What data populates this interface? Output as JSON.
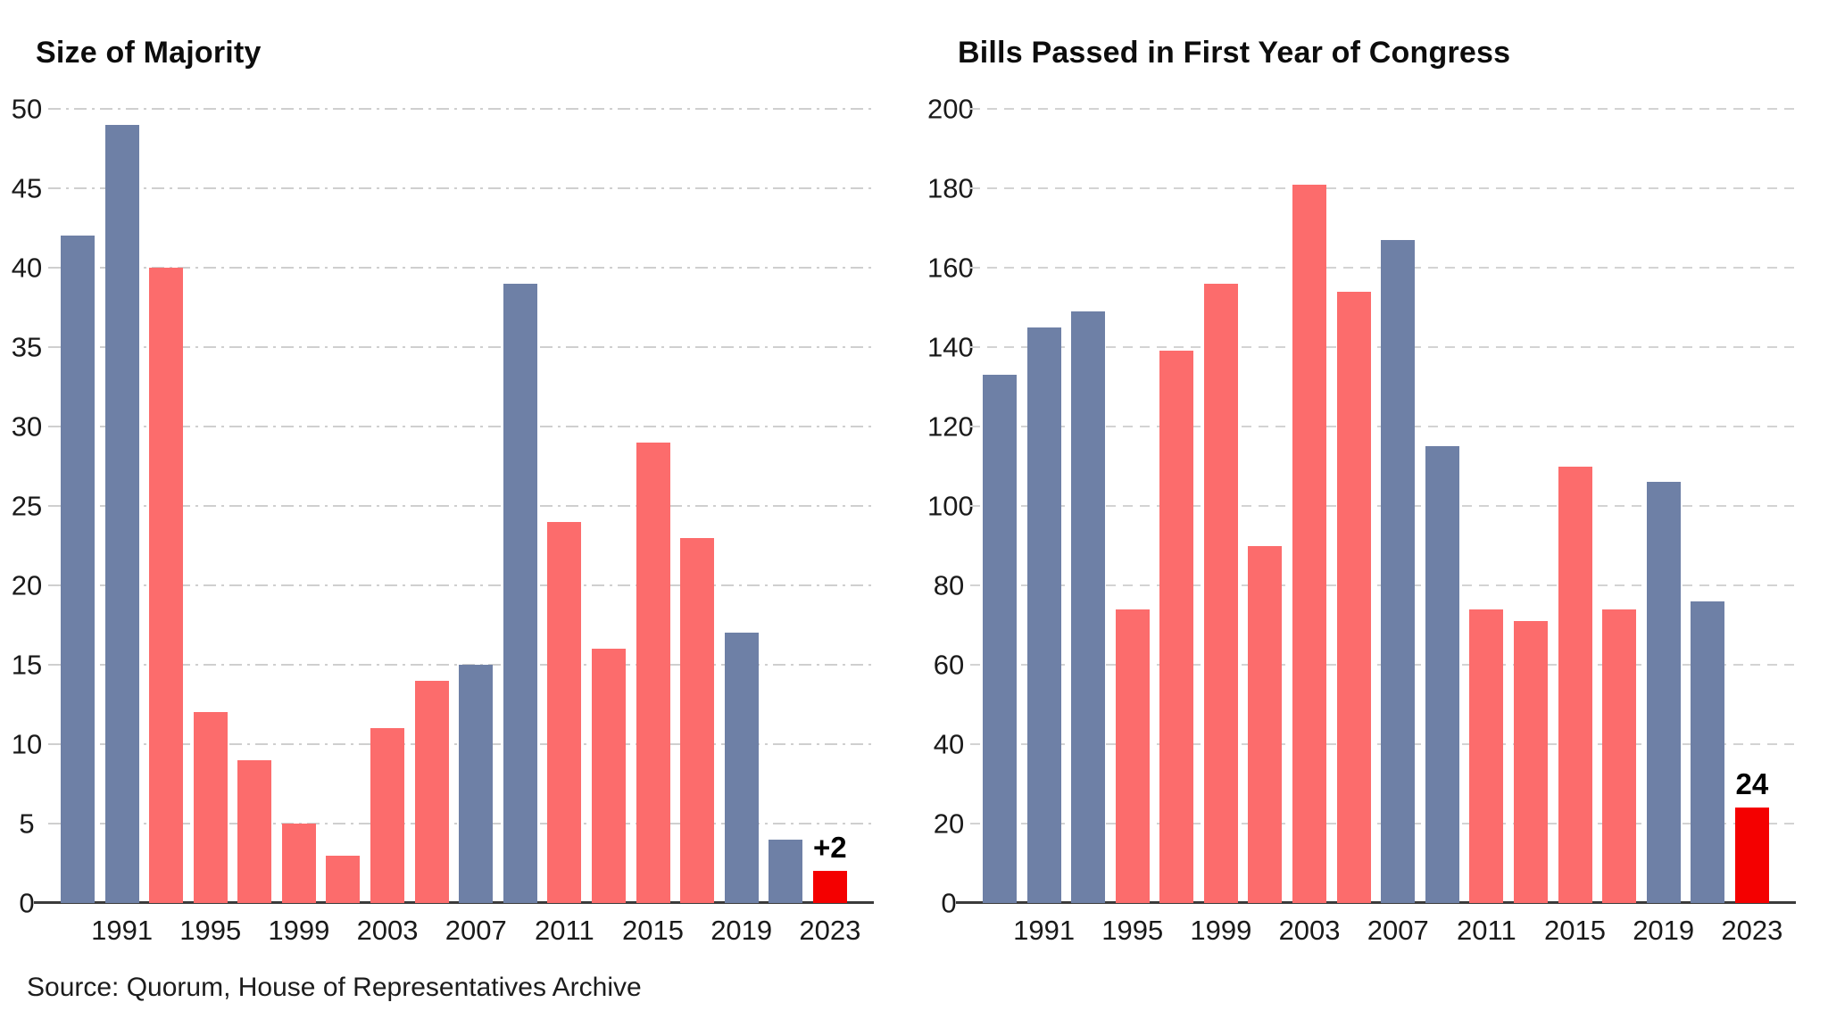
{
  "source_note": "Source: Quorum, House of Representatives Archive",
  "palette": {
    "blue": "#6E80A6",
    "red": "#FC6C6C",
    "highlight_red": "#F40000",
    "axis": "#3B3B3B",
    "gridline": "#CFCFCF",
    "text": "#111111"
  },
  "chart_data": [
    {
      "type": "bar",
      "title": "Size of Majority",
      "ylim": [
        0,
        50
      ],
      "y_ticks": [
        0,
        5,
        10,
        15,
        20,
        25,
        30,
        35,
        40,
        45,
        50
      ],
      "grid": "horizontal dash-dot",
      "legend": "none",
      "x_tick_labels": [
        "1991",
        "1995",
        "1999",
        "2003",
        "2007",
        "2011",
        "2015",
        "2019",
        "2023"
      ],
      "bars": [
        {
          "year": "1989",
          "value": 42,
          "color": "blue"
        },
        {
          "year": "1991",
          "value": 49,
          "color": "blue"
        },
        {
          "year": "1993",
          "value": 40,
          "color": "red"
        },
        {
          "year": "1995",
          "value": 12,
          "color": "red"
        },
        {
          "year": "1997",
          "value": 9,
          "color": "red"
        },
        {
          "year": "1999",
          "value": 5,
          "color": "red"
        },
        {
          "year": "2001",
          "value": 3,
          "color": "red"
        },
        {
          "year": "2003",
          "value": 11,
          "color": "red"
        },
        {
          "year": "2005",
          "value": 14,
          "color": "red"
        },
        {
          "year": "2007",
          "value": 15,
          "color": "blue"
        },
        {
          "year": "2009",
          "value": 39,
          "color": "blue"
        },
        {
          "year": "2011",
          "value": 24,
          "color": "red"
        },
        {
          "year": "2013",
          "value": 16,
          "color": "red"
        },
        {
          "year": "2015",
          "value": 29,
          "color": "red"
        },
        {
          "year": "2017",
          "value": 23,
          "color": "red"
        },
        {
          "year": "2019",
          "value": 17,
          "color": "blue"
        },
        {
          "year": "2021",
          "value": 4,
          "color": "blue"
        },
        {
          "year": "2023",
          "value": 2,
          "color": "highlight_red",
          "label": "+2"
        }
      ]
    },
    {
      "type": "bar",
      "title": "Bills Passed in First Year of Congress",
      "ylim": [
        0,
        200
      ],
      "y_ticks": [
        0,
        20,
        40,
        60,
        80,
        100,
        120,
        140,
        160,
        180,
        200
      ],
      "grid": "horizontal dashed",
      "legend": "none",
      "x_tick_labels": [
        "1991",
        "1995",
        "1999",
        "2003",
        "2007",
        "2011",
        "2015",
        "2019",
        "2023"
      ],
      "bars": [
        {
          "year": "1989",
          "value": 133,
          "color": "blue"
        },
        {
          "year": "1991",
          "value": 145,
          "color": "blue"
        },
        {
          "year": "1993",
          "value": 149,
          "color": "blue"
        },
        {
          "year": "1995",
          "value": 74,
          "color": "red"
        },
        {
          "year": "1997",
          "value": 139,
          "color": "red"
        },
        {
          "year": "1999",
          "value": 156,
          "color": "red"
        },
        {
          "year": "2001",
          "value": 90,
          "color": "red"
        },
        {
          "year": "2003",
          "value": 181,
          "color": "red"
        },
        {
          "year": "2005",
          "value": 154,
          "color": "red"
        },
        {
          "year": "2007",
          "value": 167,
          "color": "blue"
        },
        {
          "year": "2009",
          "value": 115,
          "color": "blue"
        },
        {
          "year": "2011",
          "value": 74,
          "color": "red"
        },
        {
          "year": "2013",
          "value": 71,
          "color": "red"
        },
        {
          "year": "2015",
          "value": 110,
          "color": "red"
        },
        {
          "year": "2017",
          "value": 74,
          "color": "red"
        },
        {
          "year": "2019",
          "value": 106,
          "color": "blue"
        },
        {
          "year": "2021",
          "value": 76,
          "color": "blue"
        },
        {
          "year": "2023",
          "value": 24,
          "color": "highlight_red",
          "label": "24"
        }
      ]
    }
  ]
}
